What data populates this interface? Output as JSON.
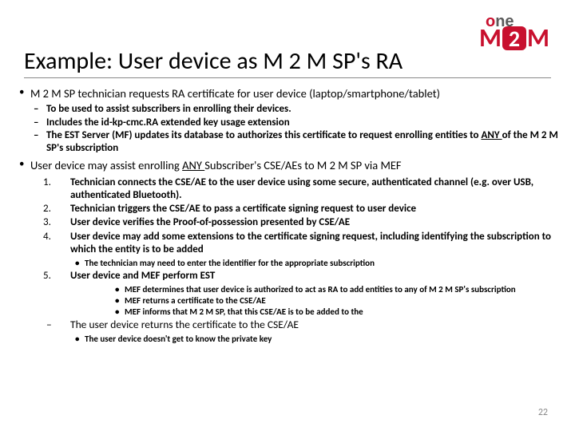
{
  "logo": {
    "one_o": "o",
    "one_ne": "ne",
    "m1": "M",
    "two": "2",
    "m2": "M"
  },
  "title": "Example: User device as M 2 M SP's RA",
  "b1": {
    "head": "M 2 M SP technician requests RA certificate for user device (laptop/smartphone/tablet)",
    "d1": "To be used to assist subscribers in enrolling their devices.",
    "d2": "Includes the id-kp-cmc.RA extended key usage extension",
    "d3a": "The EST Server (MF) updates its database to authorizes this certificate to request enrolling entities to ",
    "d3u": "ANY ",
    "d3b": "of the M 2 M SP's subscription"
  },
  "b2": {
    "head_a": "User device may assist enrolling  ",
    "head_u": "ANY ",
    "head_b": "Subscriber's CSE/AEs to M 2 M SP via MEF",
    "n1": "Technician connects the CSE/AE to the user device using some secure, authenticated channel (e.g. over USB, authenticated Bluetooth).",
    "n2": "Technician triggers the CSE/AE to pass a certificate signing request to user device",
    "n3": "User device verifies the Proof-of-possession presented by CSE/AE",
    "n4": "User device may add some extensions to the certificate signing request, including identifying the subscription to which the entity is to be added",
    "n4sub": "The technician may need to enter the identifier for the appropriate subscription",
    "n5": "User device and MEF perform EST",
    "n5s1": "MEF determines that user device is authorized to act as RA to add entities to any of M 2 M SP's subscription",
    "n5s2": "MEF returns a certificate to the CSE/AE",
    "n5s3": "MEF informs that M 2 M SP, that this CSE/AE is to be added to the",
    "final": "The user device returns the certificate to the CSE/AE",
    "finalsub": "The user device doesn't get to know the private key"
  },
  "pagenum": "22"
}
